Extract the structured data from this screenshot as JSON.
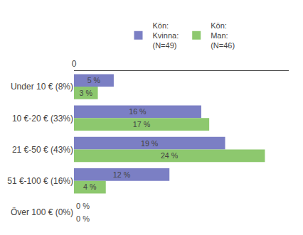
{
  "chart_data": {
    "type": "bar",
    "orientation": "horizontal",
    "categories": [
      "Under 10 € (8%)",
      "10 €-20 € (33%)",
      "21 €-50 € (43%)",
      "51 €-100 € (16%)",
      "Över 100 € (0%)"
    ],
    "series": [
      {
        "name": "Kön:\nKvinna:\n(N=49)",
        "color": "#7b7fc4",
        "values": [
          5,
          16,
          19,
          12,
          0
        ],
        "value_labels": [
          "5 %",
          "16 %",
          "19 %",
          "12 %",
          "0 %"
        ]
      },
      {
        "name": "Kön:\nMan:\n(N=46)",
        "color": "#8dc86e",
        "values": [
          3,
          17,
          24,
          4,
          0
        ],
        "value_labels": [
          "3 %",
          "17 %",
          "24 %",
          "4 %",
          "0 %"
        ]
      }
    ],
    "xlim": [
      0,
      27
    ],
    "xticks": [
      0
    ],
    "grid": false,
    "data_labels": true,
    "legend": "top"
  }
}
